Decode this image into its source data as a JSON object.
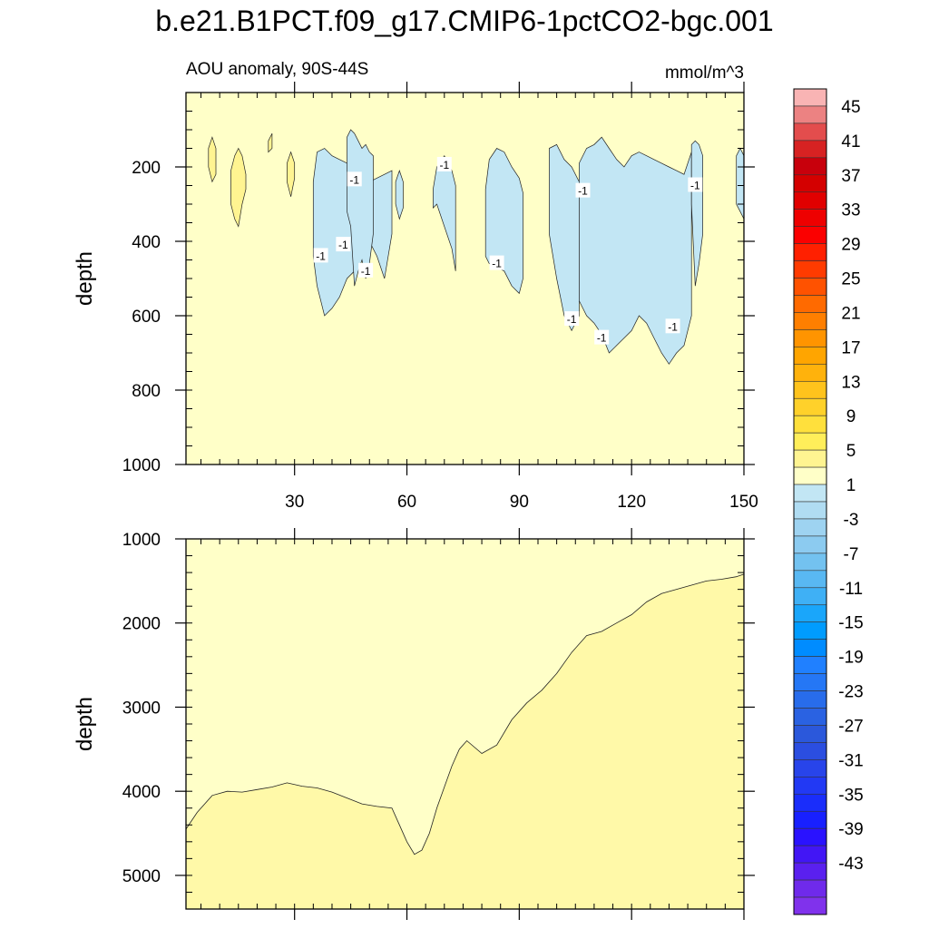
{
  "title": "b.e21.B1PCT.f09_g17.CMIP6-1pctCO2-bgc.001",
  "chart_data": {
    "type": "contour",
    "variable": "AOU anomaly, 90S-44S",
    "units": "mmol/m^3",
    "x_ticks": [
      "30",
      "60",
      "90",
      "120",
      "150"
    ],
    "x_tick_values": [
      30,
      60,
      90,
      120,
      150
    ],
    "xlim": [
      1,
      150
    ],
    "ylabel": "depth",
    "panels": [
      {
        "name": "upper",
        "ylim": [
          0,
          1000
        ],
        "y_ticks": [
          "200",
          "400",
          "600",
          "800",
          "1000"
        ],
        "y_tick_values": [
          200,
          400,
          600,
          800,
          1000
        ],
        "contour_labels": [
          "-1",
          "-1",
          "-1",
          "-1",
          "-1",
          "-1",
          "-1",
          "-1",
          "-1",
          "-1",
          "-1",
          "-1"
        ],
        "negative_regions": [
          {
            "x": [
              35,
              36,
              38,
              40,
              42,
              44,
              46,
              48,
              50,
              52,
              54,
              56
            ],
            "top": [
              240,
              160,
              150,
              170,
              180,
              190,
              200,
              220,
              240,
              230,
              220,
              210
            ],
            "bottom": [
              440,
              520,
              600,
              580,
              550,
              500,
              480,
              420,
              400,
              440,
              500,
              380
            ]
          },
          {
            "x": [
              44,
              45,
              46,
              47,
              48,
              49,
              50,
              51
            ],
            "top": [
              120,
              100,
              110,
              130,
              150,
              140,
              160,
              170
            ],
            "bottom": [
              320,
              360,
              520,
              480,
              450,
              500,
              460,
              380
            ]
          },
          {
            "x": [
              57,
              58,
              59
            ],
            "top": [
              240,
              210,
              240
            ],
            "bottom": [
              300,
              340,
              310
            ]
          },
          {
            "x": [
              67,
              68,
              70,
              72,
              73
            ],
            "top": [
              260,
              200,
              170,
              210,
              250
            ],
            "bottom": [
              310,
              300,
              360,
              420,
              480
            ]
          },
          {
            "x": [
              81,
              82,
              84,
              86,
              88,
              90,
              91
            ],
            "top": [
              260,
              180,
              150,
              160,
              200,
              230,
              270
            ],
            "bottom": [
              440,
              460,
              470,
              480,
              520,
              540,
              500
            ]
          },
          {
            "x": [
              98,
              100,
              102,
              104,
              106
            ],
            "top": [
              150,
              140,
              180,
              200,
              240
            ],
            "bottom": [
              380,
              500,
              600,
              640,
              600
            ]
          },
          {
            "x": [
              106,
              108,
              110,
              112,
              114,
              116,
              118,
              120,
              122,
              124,
              126,
              128,
              130,
              132,
              134,
              136
            ],
            "top": [
              190,
              150,
              140,
              120,
              150,
              180,
              200,
              170,
              160,
              170,
              180,
              190,
              200,
              210,
              220,
              160
            ],
            "bottom": [
              560,
              600,
              620,
              650,
              700,
              680,
              660,
              640,
              600,
              620,
              660,
              700,
              730,
              700,
              680,
              600
            ]
          },
          {
            "x": [
              136,
              137,
              138,
              139
            ],
            "top": [
              140,
              130,
              140,
              170
            ],
            "bottom": [
              300,
              520,
              460,
              380
            ]
          },
          {
            "x": [
              148,
              149,
              150
            ],
            "top": [
              170,
              150,
              170
            ],
            "bottom": [
              300,
              320,
              340
            ]
          }
        ],
        "positive_regions": [
          {
            "x": [
              7,
              8,
              9
            ],
            "top": [
              150,
              120,
              150
            ],
            "bottom": [
              200,
              240,
              220
            ]
          },
          {
            "x": [
              13,
              14,
              15,
              16,
              17
            ],
            "top": [
              210,
              170,
              150,
              170,
              220
            ],
            "bottom": [
              300,
              340,
              360,
              300,
              260
            ]
          },
          {
            "x": [
              23,
              24
            ],
            "top": [
              130,
              110
            ],
            "bottom": [
              160,
              150
            ]
          },
          {
            "x": [
              28,
              29,
              30
            ],
            "top": [
              190,
              160,
              190
            ],
            "bottom": [
              240,
              280,
              230
            ]
          }
        ]
      },
      {
        "name": "lower",
        "ylim": [
          1000,
          5400
        ],
        "y_ticks": [
          "1000",
          "2000",
          "3000",
          "4000",
          "5000"
        ],
        "y_tick_values": [
          1000,
          2000,
          3000,
          4000,
          5000
        ],
        "boundary_x": [
          1,
          4,
          8,
          12,
          16,
          20,
          24,
          28,
          32,
          36,
          40,
          44,
          48,
          52,
          56,
          58,
          60,
          62,
          64,
          66,
          68,
          70,
          72,
          74,
          76,
          80,
          84,
          88,
          92,
          96,
          100,
          104,
          108,
          112,
          116,
          120,
          124,
          128,
          132,
          136,
          140,
          144,
          148,
          150
        ],
        "boundary_depth": [
          4450,
          4250,
          4050,
          4000,
          4010,
          3980,
          3950,
          3900,
          3940,
          3960,
          4010,
          4080,
          4150,
          4180,
          4200,
          4400,
          4600,
          4750,
          4700,
          4500,
          4200,
          3950,
          3700,
          3500,
          3400,
          3550,
          3450,
          3150,
          2950,
          2800,
          2600,
          2350,
          2150,
          2100,
          2000,
          1900,
          1750,
          1650,
          1600,
          1550,
          1500,
          1480,
          1450,
          1420
        ]
      }
    ],
    "colorbar": {
      "labels": [
        "45",
        "41",
        "37",
        "33",
        "29",
        "25",
        "21",
        "17",
        "13",
        "9",
        "5",
        "1",
        "-3",
        "-7",
        "-11",
        "-15",
        "-19",
        "-23",
        "-27",
        "-31",
        "-35",
        "-39",
        "-43"
      ],
      "colors": [
        "#f9b4b4",
        "#ec8282",
        "#e34d4d",
        "#d72222",
        "#c8000c",
        "#d40000",
        "#e10000",
        "#ee0000",
        "#fb0000",
        "#ff2000",
        "#ff3b00",
        "#ff5200",
        "#ff6a00",
        "#ff7f00",
        "#ff9400",
        "#ffa500",
        "#ffb20c",
        "#ffc31c",
        "#ffd12a",
        "#ffe03c",
        "#ffee5a",
        "#fff491",
        "#ffffc8",
        "#c2e6f4",
        "#b0dcf2",
        "#9ed3f1",
        "#8ccbf0",
        "#73c2f0",
        "#59b8f2",
        "#3fb0f5",
        "#1aa6fa",
        "#009cfe",
        "#008cff",
        "#2080ff",
        "#2577f5",
        "#286ceb",
        "#2a62e2",
        "#2b58db",
        "#2b4ee0",
        "#2844ea",
        "#2239f4",
        "#1a2dfb",
        "#1820ff",
        "#2a12ff",
        "#4216f5",
        "#5a20ef",
        "#6f2aeb",
        "#8032ec"
      ]
    }
  }
}
